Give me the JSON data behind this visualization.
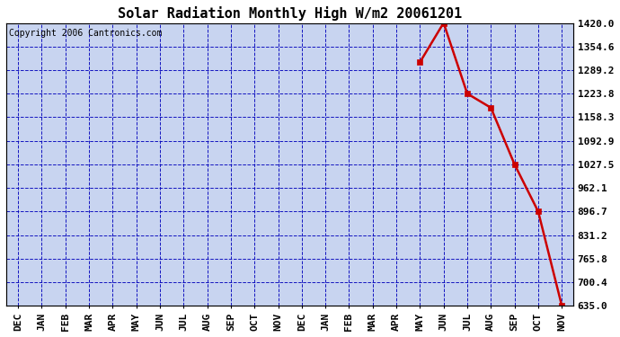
{
  "title": "Solar Radiation Monthly High W/m2 20061201",
  "copyright_text": "Copyright 2006 Cantronics.com",
  "x_labels": [
    "DEC",
    "JAN",
    "FEB",
    "MAR",
    "APR",
    "MAY",
    "JUN",
    "JUL",
    "AUG",
    "SEP",
    "OCT",
    "NOV",
    "DEC",
    "JAN",
    "FEB",
    "MAR",
    "APR",
    "MAY",
    "JUN",
    "JUL",
    "AUG",
    "SEP",
    "OCT",
    "NOV"
  ],
  "y_ticks": [
    635.0,
    700.4,
    765.8,
    831.2,
    896.7,
    962.1,
    1027.5,
    1092.9,
    1158.3,
    1223.8,
    1289.2,
    1354.6,
    1420.0
  ],
  "ylim": [
    635.0,
    1420.0
  ],
  "data_x_indices": [
    17,
    18,
    19,
    20,
    21,
    22,
    23
  ],
  "data_y_values": [
    1311.0,
    1420.0,
    1223.8,
    1184.6,
    1027.5,
    896.7,
    635.0
  ],
  "line_color": "#cc0000",
  "marker_color": "#cc0000",
  "marker_size": 4,
  "bg_color": "#ffffff",
  "plot_bg_color": "#c8d4f0",
  "grid_color": "#0000bb",
  "title_fontsize": 11,
  "copyright_fontsize": 7,
  "tick_fontsize": 8
}
